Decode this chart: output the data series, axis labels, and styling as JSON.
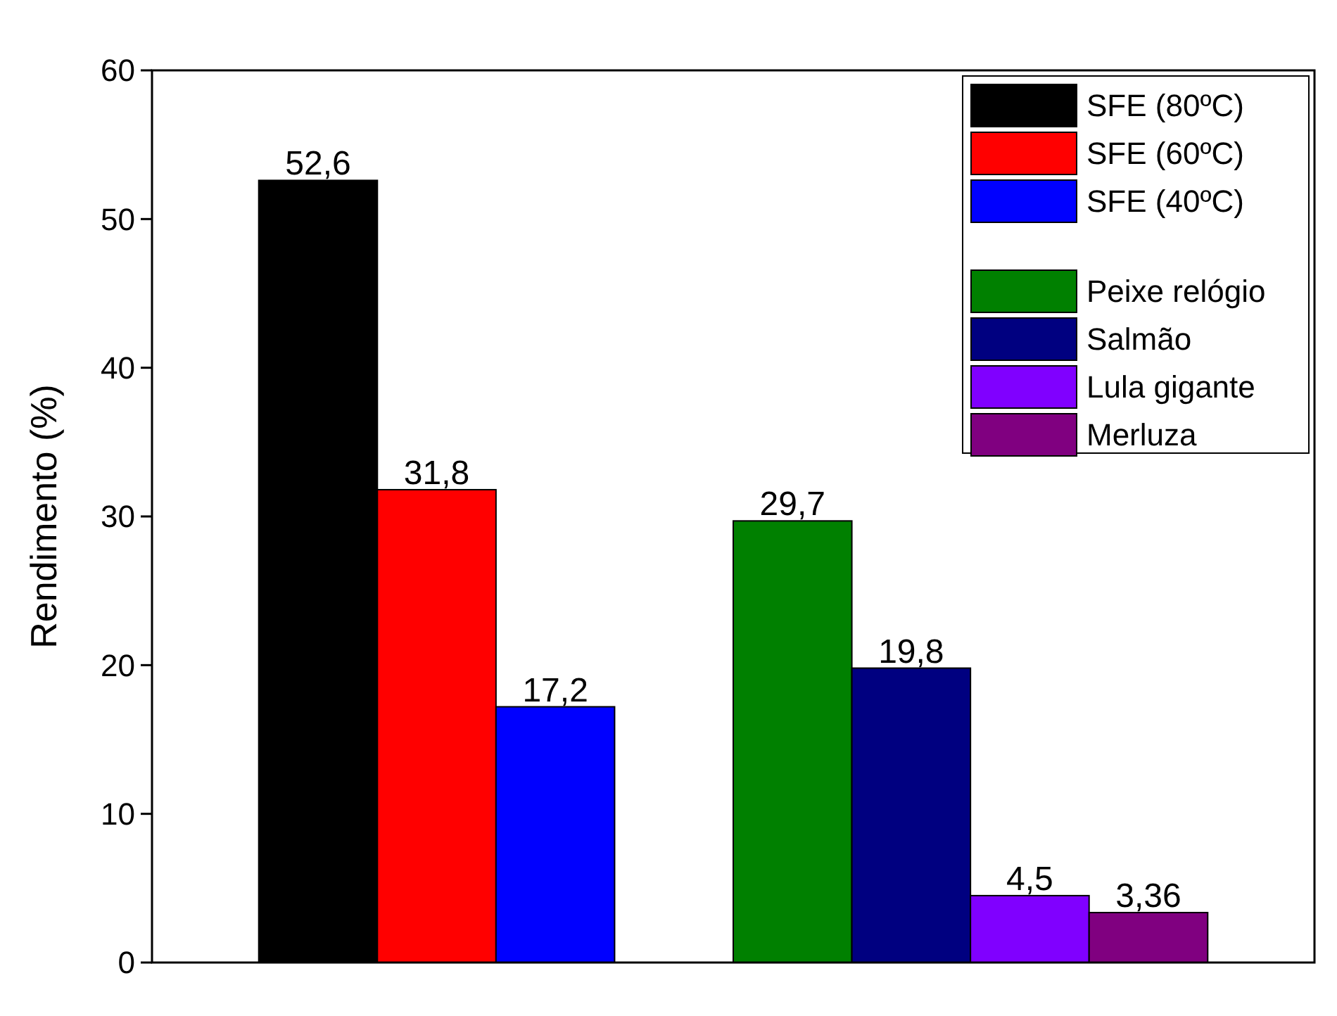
{
  "chart_data": {
    "type": "bar",
    "stacked": true,
    "ylabel": "Rendimento (%)",
    "categories": [
      null,
      null,
      null,
      null,
      null,
      null,
      null
    ],
    "ylim": [
      0,
      60
    ],
    "yticks": [
      0,
      10,
      20,
      30,
      40,
      50,
      60
    ],
    "legend": "top right",
    "series": [
      {
        "name": "SFE (80ºC)",
        "color": "#000000",
        "values": [
          52.6,
          null,
          null,
          null,
          null,
          null,
          null
        ],
        "value_labels": [
          "52,6",
          null,
          null,
          null,
          null,
          null,
          null
        ]
      },
      {
        "name": "SFE (60ºC)",
        "color": "#ff0000",
        "values": [
          null,
          31.8,
          null,
          null,
          null,
          null,
          null
        ],
        "value_labels": [
          null,
          "31,8",
          null,
          null,
          null,
          null,
          null
        ]
      },
      {
        "name": "SFE (40ºC)",
        "color": "#0000ff",
        "values": [
          null,
          null,
          17.2,
          null,
          null,
          null,
          null
        ],
        "value_labels": [
          null,
          null,
          "17,2",
          null,
          null,
          null,
          null
        ]
      },
      {
        "name": "Peixe relógio",
        "color": "#008000",
        "values": [
          null,
          null,
          null,
          29.7,
          null,
          null,
          null
        ],
        "value_labels": [
          null,
          null,
          null,
          "29,7",
          null,
          null,
          null
        ]
      },
      {
        "name": "Salmão",
        "color": "#000080",
        "values": [
          null,
          null,
          null,
          null,
          19.8,
          null,
          null
        ],
        "value_labels": [
          null,
          null,
          null,
          null,
          "19,8",
          null,
          null
        ]
      },
      {
        "name": "Lula gigante",
        "color": "#8000ff",
        "values": [
          null,
          null,
          null,
          null,
          null,
          4.5,
          null
        ],
        "value_labels": [
          null,
          null,
          null,
          null,
          null,
          "4,5",
          null
        ]
      },
      {
        "name": "Merluza",
        "color": "#800080",
        "values": [
          null,
          null,
          null,
          null,
          null,
          null,
          3.36
        ],
        "value_labels": [
          null,
          null,
          null,
          null,
          null,
          null,
          "3,36"
        ]
      }
    ]
  }
}
